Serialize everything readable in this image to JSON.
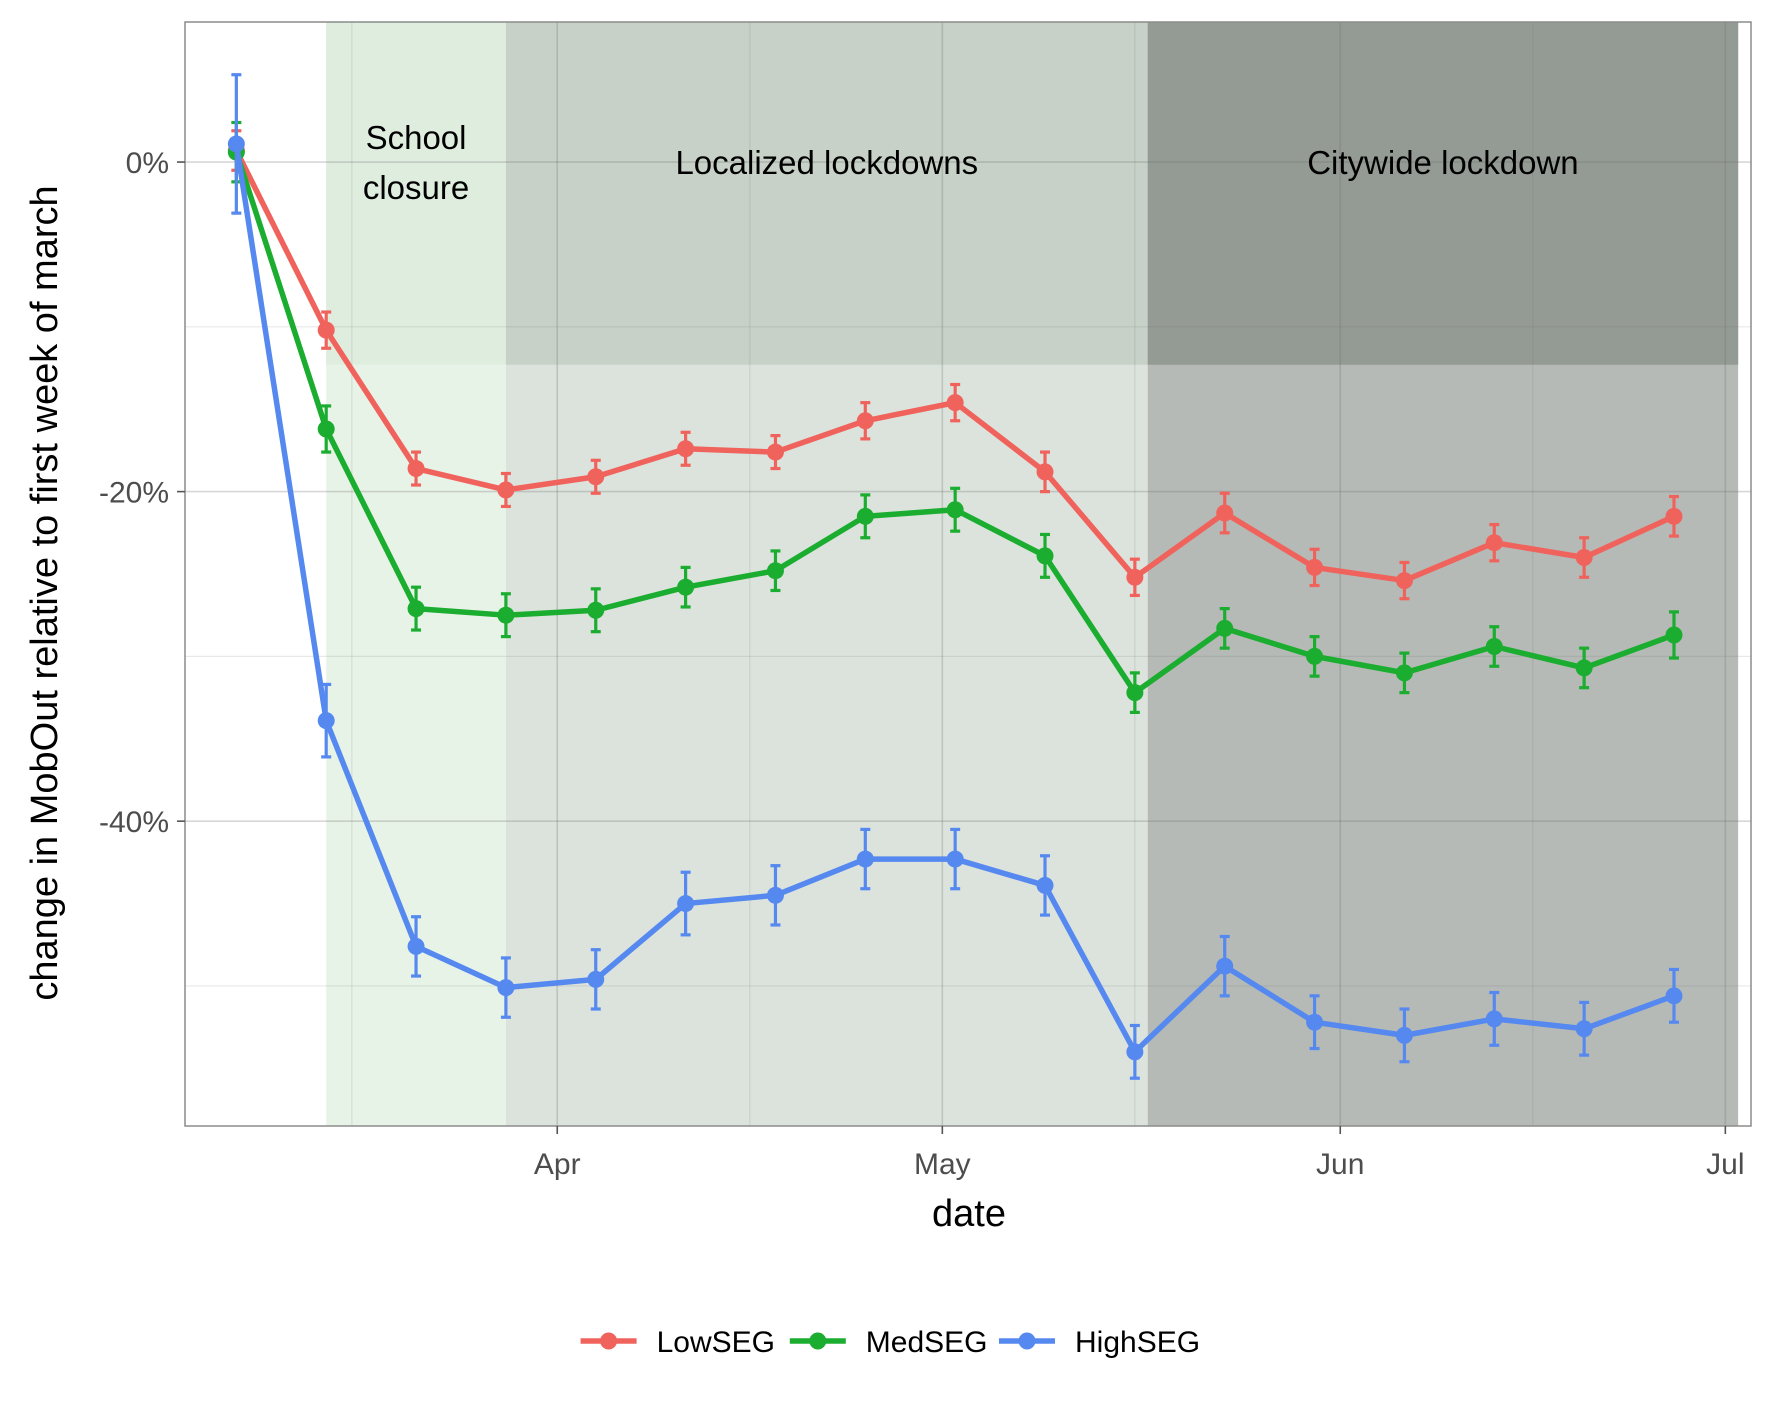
{
  "chart_data": {
    "type": "line",
    "xlabel": "date",
    "ylabel": "change in MobOut relative to first week of march",
    "xlim": [
      "2020-03-03",
      "2020-07-03"
    ],
    "ylim": [
      -58.5,
      8.5
    ],
    "x_ticks": [
      {
        "date": "2020-04-01",
        "label": "Apr"
      },
      {
        "date": "2020-05-01",
        "label": "May"
      },
      {
        "date": "2020-06-01",
        "label": "Jun"
      },
      {
        "date": "2020-07-01",
        "label": "Jul"
      }
    ],
    "y_ticks": [
      {
        "value": 0,
        "label": "0%"
      },
      {
        "value": -20,
        "label": "-20%"
      },
      {
        "value": -40,
        "label": "-40%"
      }
    ],
    "grid": true,
    "legend": {
      "position": "bottom"
    },
    "periods": [
      {
        "label_lines": [
          "School",
          "closure"
        ],
        "start": "2020-03-14",
        "end": "2020-03-28",
        "fill": "#e8f3e8",
        "band_fill": "#dfeddf"
      },
      {
        "label_lines": [
          "Localized lockdowns"
        ],
        "start": "2020-03-28",
        "end": "2020-05-17",
        "fill": "#dce3dc",
        "band_fill": "#c7d1c7"
      },
      {
        "label_lines": [
          "Citywide lockdown"
        ],
        "start": "2020-05-17",
        "end": "2020-07-02",
        "fill": "#b6bab6",
        "band_fill": "#949a94"
      }
    ],
    "dates": [
      "2020-03-07",
      "2020-03-14",
      "2020-03-21",
      "2020-03-28",
      "2020-04-04",
      "2020-04-11",
      "2020-04-18",
      "2020-04-25",
      "2020-05-02",
      "2020-05-09",
      "2020-05-16",
      "2020-05-23",
      "2020-05-30",
      "2020-06-06",
      "2020-06-13",
      "2020-06-20",
      "2020-06-27"
    ],
    "series": [
      {
        "name": "LowSEG",
        "color": "#f0635d",
        "values": [
          0.7,
          -10.2,
          -18.6,
          -19.9,
          -19.1,
          -17.4,
          -17.6,
          -15.7,
          -14.6,
          -18.8,
          -25.2,
          -21.3,
          -24.6,
          -25.4,
          -23.1,
          -24.0,
          -21.5
        ],
        "err": [
          1.2,
          1.1,
          1.0,
          1.0,
          1.0,
          1.0,
          1.0,
          1.1,
          1.1,
          1.2,
          1.1,
          1.2,
          1.1,
          1.1,
          1.1,
          1.2,
          1.2
        ]
      },
      {
        "name": "MedSEG",
        "color": "#1aad2f",
        "values": [
          0.6,
          -16.2,
          -27.1,
          -27.5,
          -27.2,
          -25.8,
          -24.8,
          -21.5,
          -21.1,
          -23.9,
          -32.2,
          -28.3,
          -30.0,
          -31.0,
          -29.4,
          -30.7,
          -28.7
        ],
        "err": [
          1.8,
          1.4,
          1.3,
          1.3,
          1.3,
          1.2,
          1.2,
          1.3,
          1.3,
          1.3,
          1.2,
          1.2,
          1.2,
          1.2,
          1.2,
          1.2,
          1.4
        ]
      },
      {
        "name": "HighSEG",
        "color": "#5689f0",
        "values": [
          1.1,
          -33.9,
          -47.6,
          -50.1,
          -49.6,
          -45.0,
          -44.5,
          -42.3,
          -42.3,
          -43.9,
          -54.0,
          -48.8,
          -52.2,
          -53.0,
          -52.0,
          -52.6,
          -50.6
        ],
        "err": [
          4.2,
          2.2,
          1.8,
          1.8,
          1.8,
          1.9,
          1.8,
          1.8,
          1.8,
          1.8,
          1.6,
          1.8,
          1.6,
          1.6,
          1.6,
          1.6,
          1.6
        ]
      }
    ]
  }
}
